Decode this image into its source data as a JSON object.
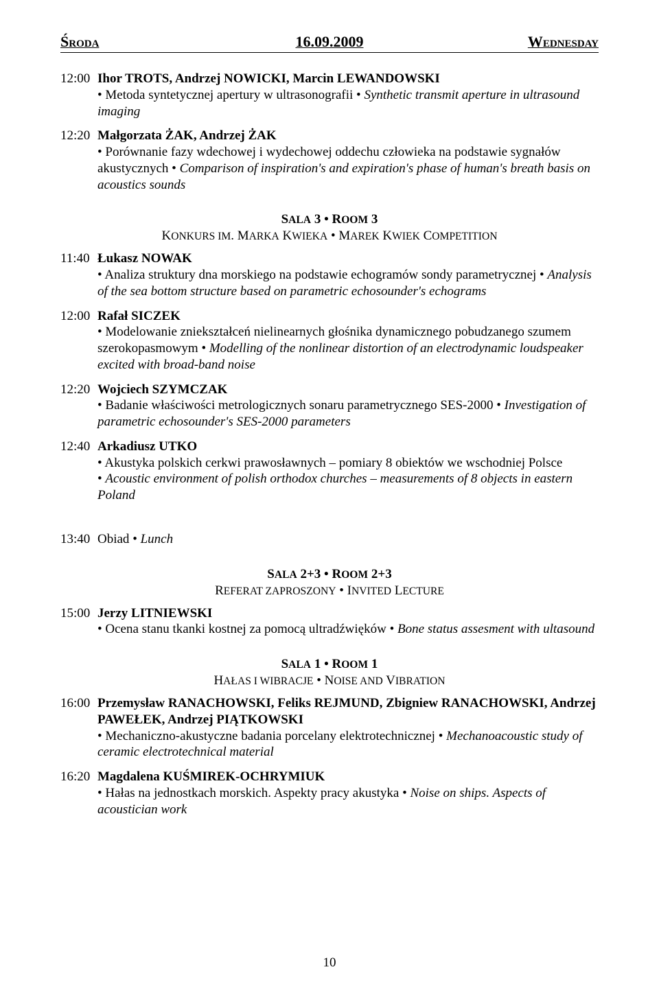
{
  "header": {
    "left": "Środa",
    "center": "16.09.2009",
    "right": "Wednesday"
  },
  "entries_top": [
    {
      "time": "12:00",
      "authors": "Ihor TROTS, Andrzej NOWICKI, Marcin LEWANDOWSKI",
      "title_pl": "• Metoda syntetycznej apertury w ultrasonografii ",
      "title_en": "Synthetic transmit aperture in ultrasound imaging"
    },
    {
      "time": "12:20",
      "authors": "Małgorzata ŻAK, Andrzej ŻAK",
      "title_pl": "• Porównanie fazy wdechowej i wydechowej oddechu człowieka na podstawie sygnałów akustycznych ",
      "title_en": "Comparison of inspiration's and expiration's phase of human's breath basis on acoustics sounds"
    }
  ],
  "section1": {
    "line1_a": "S",
    "line1_b": "ala",
    "line1_c": " 3 • R",
    "line1_d": "oom",
    "line1_e": " 3",
    "line2_a": "Konkurs im. Marka Kwieka • Marek Kwiek Competition"
  },
  "entries_mid": [
    {
      "time": "11:40",
      "authors": "Łukasz NOWAK",
      "title_pl": "• Analiza struktury dna morskiego na podstawie echogramów sondy parametrycznej ",
      "title_en": "Analysis of the sea bottom structure based on parametric echosounder's echograms"
    },
    {
      "time": "12:00",
      "authors": "Rafał SICZEK",
      "title_pl": "• Modelowanie zniekształceń nielinearnych głośnika dynamicznego pobudzanego szumem szerokopasmowym ",
      "title_en": "Modelling of the nonlinear distortion of an electrodynamic loudspeaker excited with broad-band noise"
    },
    {
      "time": "12:20",
      "authors": "Wojciech SZYMCZAK",
      "title_pl": "• Badanie właściwości metrologicznych sonaru parametrycznego SES-2000 ",
      "title_en": "Investigation of parametric echosounder's SES-2000 parameters"
    },
    {
      "time": "12:40",
      "authors": "Arkadiusz UTKO",
      "title_pl1": "• Akustyka polskich cerkwi prawosławnych – pomiary 8 obiektów we wschodniej Polsce",
      "title_pl2": "• ",
      "title_en": "Acoustic environment of polish orthodox churches – measurements of 8 objects in eastern Poland"
    }
  ],
  "lunch": {
    "time": "13:40",
    "label_pl": "Obiad ",
    "label_en": "Lunch"
  },
  "section2": {
    "line1": "Sala 2+3 • Room 2+3",
    "line2": "Referat zaproszony • Invited Lecture"
  },
  "entries_sec2": [
    {
      "time": "15:00",
      "authors": "Jerzy LITNIEWSKI",
      "title_pl": "• Ocena stanu tkanki kostnej za pomocą ultradźwięków ",
      "title_en": "Bone status assesment with ultasound"
    }
  ],
  "section3": {
    "line1": "Sala 1 • Room 1",
    "line2": "Hałas i wibracje • Noise and Vibration"
  },
  "entries_sec3": [
    {
      "time": "16:00",
      "authors": "Przemysław RANACHOWSKI, Feliks REJMUND, Zbigniew RANACHOWSKI, Andrzej PAWEŁEK, Andrzej PIĄTKOWSKI",
      "title_pl": "• Mechaniczno-akustyczne badania porcelany elektrotechnicznej ",
      "title_en": "Mechanoacoustic study of ceramic electrotechnical material"
    },
    {
      "time": "16:20",
      "authors": "Magdalena KUŚMIREK-OCHRYMIUK",
      "title_pl": "• Hałas na jednostkach morskich. Aspekty pracy akustyka ",
      "title_en": "Noise on ships. Aspects of acoustician work"
    }
  ],
  "page_number": "10"
}
